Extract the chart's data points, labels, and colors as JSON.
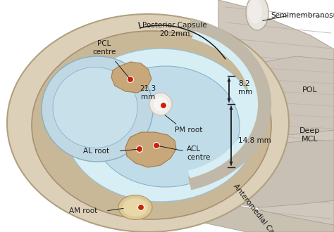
{
  "labels": {
    "PCL_centre": "PCL\ncentre",
    "Posterior_Capsule": "Posterior Capsule\n20.2mm",
    "Semimembranosus": "Semimembranosus",
    "POL": "POL",
    "Deep_MCL": "Deep\nMCL",
    "PM_root": "PM root",
    "measurement_213": "21.3\nmm",
    "measurement_82": "8.2\nmm",
    "measurement_148": "14.8 mm",
    "AL_root": "AL root",
    "ACL_centre": "ACL\ncentre",
    "AM_root": "AM root",
    "Anteromedial_Capsule": "Anteromedial Capsule"
  },
  "colors": {
    "white_bg": "#ffffff",
    "bone_outer": "#ddd0b8",
    "bone_tan": "#c8a87a",
    "bone_mid": "#cfc0a0",
    "meniscus_ring": "#c8b898",
    "cartilage_blue": "#c0dce8",
    "cartilage_light": "#d8eef5",
    "lateral_cart": "#b8d4e0",
    "intercondylar_tan": "#c8a870",
    "pm_white": "#f0ede8",
    "muscle_bg": "#d0c8bc",
    "muscle_stripe": "#b8b0a4",
    "tendon_white": "#e8e4de",
    "capsule_pink": "#e8ddd0",
    "red_dot": "#cc2200",
    "dark": "#1a1a1a",
    "anteromedial_cap": "#c8c0b0"
  }
}
